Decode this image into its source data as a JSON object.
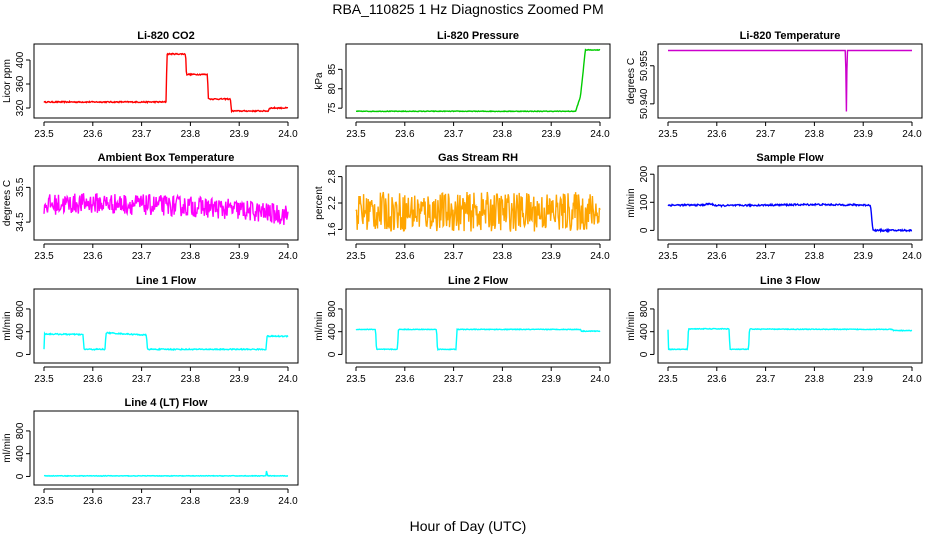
{
  "title": "RBA_110825  1 Hz Diagnostics Zoomed PM",
  "xlabel": "Hour of Day (UTC)",
  "colors": {
    "co2": "#ff0000",
    "pressure": "#00cc00",
    "temperature": "#cc00cc",
    "ambient": "#ff00ff",
    "rh": "#ffa500",
    "sample": "#0000ff",
    "line": "#00ffff"
  },
  "chart_data": [
    {
      "type": "line",
      "title": "Li-820 CO2",
      "xlabel": "",
      "ylabel": "Licor ppm",
      "xlim": [
        23.5,
        24.0
      ],
      "ylim": [
        310,
        420
      ],
      "xticks": [
        "23.5",
        "23.6",
        "23.7",
        "23.8",
        "23.9",
        "24.0"
      ],
      "yticks": [
        [
          "320",
          320
        ],
        [
          "360",
          360
        ],
        [
          "400",
          400
        ]
      ],
      "color": "#ff0000",
      "jitter": 1,
      "series": [
        {
          "x": [
            23.5,
            23.75,
            23.752,
            23.79,
            23.792,
            23.835,
            23.837,
            23.882,
            23.884,
            23.96,
            23.962,
            24.0
          ],
          "y": [
            330,
            330,
            410,
            410,
            376,
            376,
            335,
            335,
            315,
            315,
            320,
            320
          ]
        }
      ]
    },
    {
      "type": "line",
      "title": "Li-820 Pressure",
      "xlabel": "",
      "ylabel": "kPa",
      "xlim": [
        23.5,
        24.0
      ],
      "ylim": [
        73.5,
        90.5
      ],
      "xticks": [
        "23.5",
        "23.6",
        "23.7",
        "23.8",
        "23.9",
        "24.0"
      ],
      "yticks": [
        [
          "75",
          75
        ],
        [
          "80",
          80
        ],
        [
          "85",
          85
        ]
      ],
      "color": "#00cc00",
      "jitter": 0.08,
      "series": [
        {
          "x": [
            23.5,
            23.95,
            23.96,
            23.965,
            23.97,
            24.0
          ],
          "y": [
            74.2,
            74.2,
            78,
            84,
            90,
            90
          ]
        }
      ]
    },
    {
      "type": "line",
      "title": "Li-820 Temperature",
      "xlabel": "",
      "ylabel": "degrees C",
      "xlim": [
        23.5,
        24.0
      ],
      "ylim": [
        50.936,
        50.962
      ],
      "xticks": [
        "23.5",
        "23.6",
        "23.7",
        "23.8",
        "23.9",
        "24.0"
      ],
      "yticks": [
        [
          "50.940",
          50.94
        ],
        [
          "50.955",
          50.955
        ]
      ],
      "color": "#cc00cc",
      "jitter": 0,
      "series": [
        {
          "x": [
            23.5,
            23.864,
            23.865,
            23.866,
            23.867,
            24.0
          ],
          "y": [
            50.961,
            50.961,
            50.937,
            50.937,
            50.961,
            50.961
          ]
        }
      ]
    },
    {
      "type": "line",
      "title": "Ambient Box Temperature",
      "xlabel": "",
      "ylabel": "degrees C",
      "xlim": [
        23.5,
        24.0
      ],
      "ylim": [
        34.1,
        36.0
      ],
      "xticks": [
        "23.5",
        "23.6",
        "23.7",
        "23.8",
        "23.9",
        "24.0"
      ],
      "yticks": [
        [
          "34.5",
          34.5
        ],
        [
          "35.5",
          35.5
        ]
      ],
      "color": "#ff00ff",
      "jitter": 0.3,
      "series": [
        {
          "x": [
            23.5,
            23.6,
            23.7,
            23.8,
            23.9,
            24.0
          ],
          "y": [
            35.0,
            35.05,
            35.0,
            34.95,
            34.85,
            34.7
          ]
        }
      ]
    },
    {
      "type": "line",
      "title": "Gas Stream RH",
      "xlabel": "",
      "ylabel": "percent",
      "xlim": [
        23.5,
        24.0
      ],
      "ylim": [
        1.45,
        2.95
      ],
      "xticks": [
        "23.5",
        "23.6",
        "23.7",
        "23.8",
        "23.9",
        "24.0"
      ],
      "yticks": [
        [
          "1.6",
          1.6
        ],
        [
          "2.2",
          2.2
        ],
        [
          "2.8",
          2.8
        ]
      ],
      "color": "#ffa500",
      "jitter": 0.45,
      "series": [
        {
          "x": [
            23.5,
            24.0
          ],
          "y": [
            2.0,
            2.0
          ]
        }
      ]
    },
    {
      "type": "line",
      "title": "Sample Flow",
      "xlabel": "",
      "ylabel": "ml/min",
      "xlim": [
        23.5,
        24.0
      ],
      "ylim": [
        -20,
        215
      ],
      "xticks": [
        "23.5",
        "23.6",
        "23.7",
        "23.8",
        "23.9",
        "24.0"
      ],
      "yticks": [
        [
          "0",
          0
        ],
        [
          "100",
          100
        ],
        [
          "200",
          200
        ]
      ],
      "color": "#0000ff",
      "jitter": 3,
      "series": [
        {
          "x": [
            23.5,
            23.57,
            23.585,
            23.6,
            23.7,
            23.8,
            23.915,
            23.92,
            24.0
          ],
          "y": [
            90,
            90,
            95,
            88,
            90,
            92,
            90,
            0,
            0
          ]
        }
      ]
    },
    {
      "type": "line",
      "title": "Line 1 Flow",
      "xlabel": "",
      "ylabel": "ml/min",
      "xlim": [
        23.5,
        24.0
      ],
      "ylim": [
        -80,
        1080
      ],
      "xticks": [
        "23.5",
        "23.6",
        "23.7",
        "23.8",
        "23.9",
        "24.0"
      ],
      "yticks": [
        [
          "0",
          0
        ],
        [
          "400",
          400
        ],
        [
          "800",
          800
        ]
      ],
      "color": "#00ffff",
      "jitter": 10,
      "series": [
        {
          "x": [
            23.5,
            23.501,
            23.58,
            23.582,
            23.625,
            23.627,
            23.71,
            23.712,
            23.955,
            23.957,
            24.0
          ],
          "y": [
            100,
            360,
            350,
            90,
            90,
            380,
            340,
            90,
            90,
            320,
            320
          ]
        }
      ]
    },
    {
      "type": "line",
      "title": "Line 2 Flow",
      "xlabel": "",
      "ylabel": "ml/min",
      "xlim": [
        23.5,
        24.0
      ],
      "ylim": [
        -80,
        1080
      ],
      "xticks": [
        "23.5",
        "23.6",
        "23.7",
        "23.8",
        "23.9",
        "24.0"
      ],
      "yticks": [
        [
          "0",
          0
        ],
        [
          "400",
          400
        ],
        [
          "800",
          800
        ]
      ],
      "color": "#00ffff",
      "jitter": 6,
      "series": [
        {
          "x": [
            23.5,
            23.54,
            23.542,
            23.585,
            23.587,
            23.665,
            23.667,
            23.705,
            23.707,
            23.96,
            23.962,
            24.0
          ],
          "y": [
            440,
            440,
            90,
            90,
            440,
            440,
            90,
            90,
            440,
            440,
            410,
            410
          ]
        }
      ]
    },
    {
      "type": "line",
      "title": "Line 3 Flow",
      "xlabel": "",
      "ylabel": "ml/min",
      "xlim": [
        23.5,
        24.0
      ],
      "ylim": [
        -80,
        1080
      ],
      "xticks": [
        "23.5",
        "23.6",
        "23.7",
        "23.8",
        "23.9",
        "24.0"
      ],
      "yticks": [
        [
          "0",
          0
        ],
        [
          "400",
          400
        ],
        [
          "800",
          800
        ]
      ],
      "color": "#00ffff",
      "jitter": 6,
      "series": [
        {
          "x": [
            23.5,
            23.501,
            23.54,
            23.542,
            23.625,
            23.627,
            23.665,
            23.667,
            23.96,
            23.962,
            24.0
          ],
          "y": [
            440,
            90,
            90,
            450,
            450,
            90,
            90,
            445,
            440,
            420,
            420
          ]
        }
      ]
    },
    {
      "type": "line",
      "title": "Line 4 (LT) Flow",
      "xlabel": "",
      "ylabel": "ml/min",
      "xlim": [
        23.5,
        24.0
      ],
      "ylim": [
        -80,
        1080
      ],
      "xticks": [
        "23.5",
        "23.6",
        "23.7",
        "23.8",
        "23.9",
        "24.0"
      ],
      "yticks": [
        [
          "0",
          0
        ],
        [
          "400",
          400
        ],
        [
          "800",
          800
        ]
      ],
      "color": "#00ffff",
      "jitter": 5,
      "series": [
        {
          "x": [
            23.5,
            23.955,
            23.956,
            23.958,
            23.96,
            24.0
          ],
          "y": [
            10,
            10,
            100,
            10,
            10,
            10
          ]
        }
      ]
    }
  ]
}
